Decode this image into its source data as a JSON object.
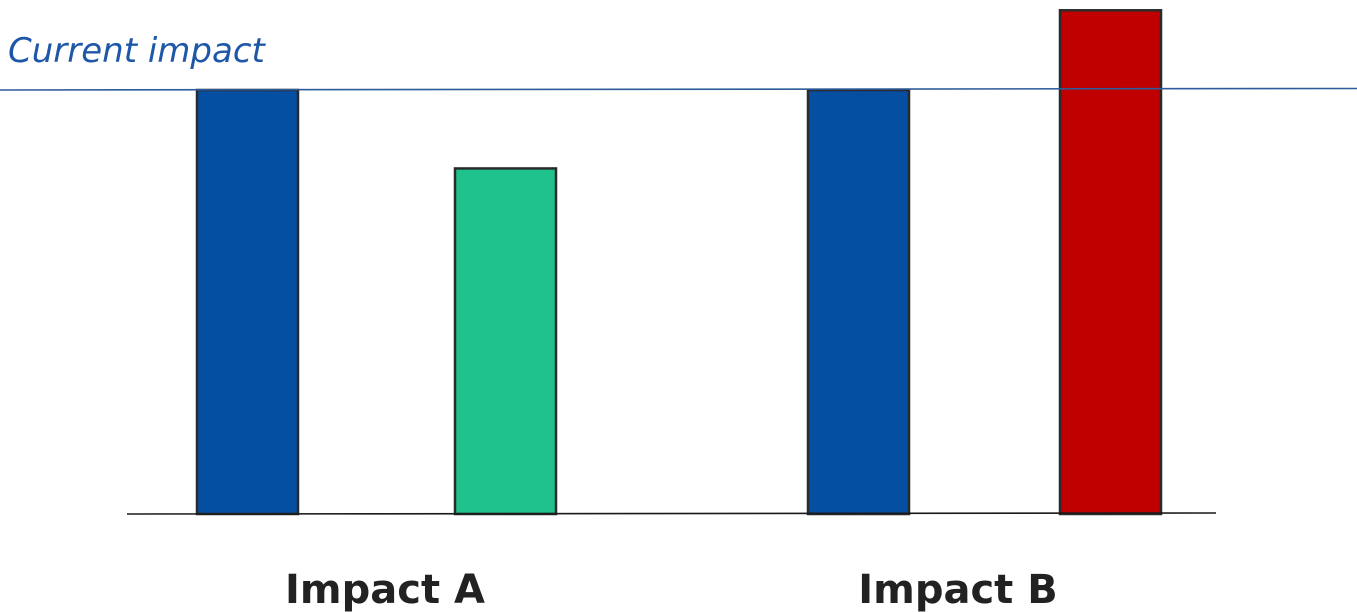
{
  "chart_data": {
    "type": "bar",
    "title": "Current impact",
    "categories": [
      "Impact A",
      "Impact B"
    ],
    "series": [
      {
        "values": [
          100,
          100
        ]
      },
      {
        "values": [
          81.5,
          118.8
        ]
      }
    ],
    "reference_line": {
      "value": 100
    },
    "ylim": [
      0,
      120
    ],
    "grid": false,
    "legend": "none",
    "colors": {
      "bar_blue": "#054fa3",
      "bar_green": "#1fc28c",
      "bar_red": "#c00000",
      "reference_line": "#2e5b9a",
      "title": "#1f57a8",
      "axis": "#1a1a1a",
      "bar_outline": "#2a2a2a",
      "label": "#222222"
    },
    "bar_colors": [
      [
        "bar_blue",
        "bar_green"
      ],
      [
        "bar_blue",
        "bar_red"
      ]
    ]
  }
}
